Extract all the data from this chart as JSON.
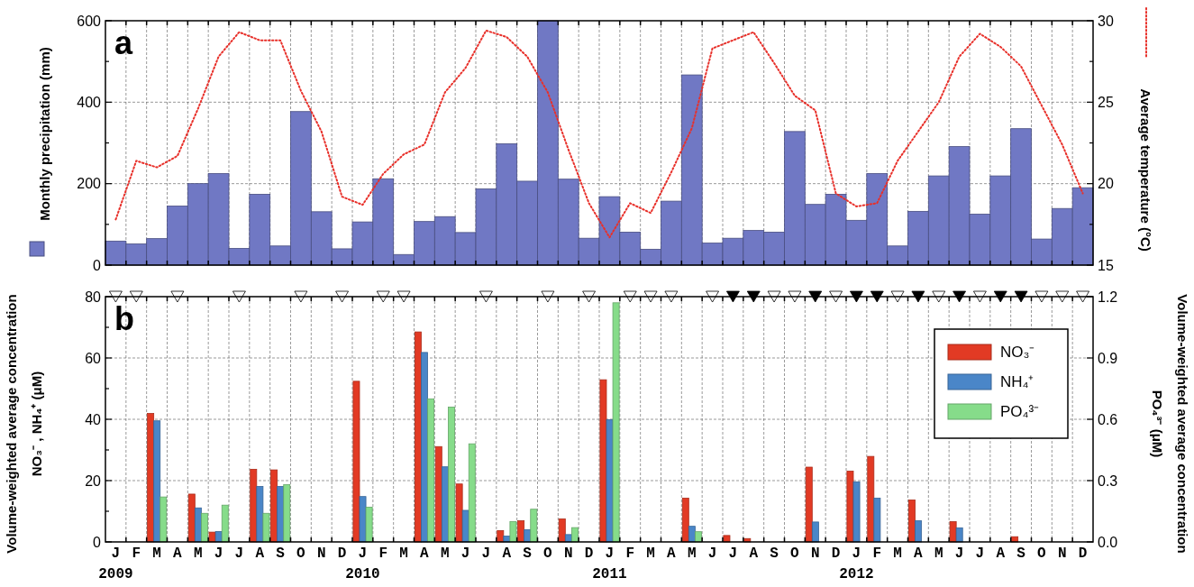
{
  "chart_data": [
    {
      "type": "bar",
      "title": "a",
      "categories": [
        null,
        null,
        null,
        null,
        null,
        null,
        null,
        null,
        null,
        null,
        null,
        null,
        null,
        null,
        null,
        null,
        null,
        null,
        null,
        null,
        null,
        null,
        null,
        null,
        null,
        null,
        null,
        null,
        null,
        null,
        null,
        null,
        null,
        null,
        null,
        null,
        null,
        null,
        null,
        null,
        null,
        null,
        null,
        null,
        null,
        null,
        null,
        null
      ],
      "ylabel": "Monthly precipitation (mm)",
      "y2label": "Average temperature (°C)",
      "ylim": [
        0,
        600
      ],
      "yticks": [
        0,
        {
          "value": 100,
          "label": null
        },
        200,
        {
          "value": 300,
          "label": null
        },
        400,
        {
          "value": 500,
          "label": null
        },
        600
      ],
      "y2lim": [
        15,
        30
      ],
      "y2ticks": [
        15,
        {
          "value": 17.5,
          "label": null
        },
        20,
        {
          "value": 22.5,
          "label": null
        },
        25,
        {
          "value": 27.5,
          "label": null
        },
        30
      ],
      "grid": true,
      "tick_labels": "y",
      "line_style": "dotted",
      "series": [
        {
          "type": "bar",
          "color": "#7078c4",
          "values": [
            59,
            52,
            65,
            145,
            200,
            225,
            41,
            174,
            47,
            377,
            131,
            40,
            106,
            212,
            26,
            107,
            119,
            80,
            187,
            298,
            206,
            600,
            211,
            66,
            168,
            81,
            39,
            157,
            467,
            54,
            66,
            85,
            81,
            328,
            149,
            174,
            110,
            225,
            47,
            132,
            219,
            291,
            125,
            219,
            335,
            64,
            139,
            190
          ]
        },
        {
          "type": "line",
          "axis": "y2",
          "color": "#e8302a",
          "values": [
            17.8,
            21.4,
            21.0,
            21.7,
            24.6,
            27.8,
            29.3,
            28.8,
            28.8,
            25.7,
            23.2,
            19.2,
            18.7,
            20.6,
            21.8,
            22.4,
            25.6,
            27.1,
            29.4,
            29.0,
            27.8,
            25.6,
            22.1,
            18.8,
            16.7,
            18.8,
            18.2,
            20.7,
            23.4,
            28.3,
            28.8,
            29.3,
            27.4,
            25.4,
            24.5,
            19.4,
            18.6,
            18.8,
            21.4,
            23.2,
            25.0,
            27.8,
            29.2,
            28.4,
            27.2,
            24.8,
            22.4,
            19.4
          ]
        }
      ]
    },
    {
      "type": "bar",
      "title": "b",
      "categories": [
        "J\n2009",
        "F",
        "M",
        "A",
        "M",
        "J",
        "J",
        "A",
        "S",
        "O",
        "N",
        "D",
        "J\n2010",
        "F",
        "M",
        "A",
        "M",
        "J",
        "J",
        "A",
        "S",
        "O",
        "N",
        "D",
        "J\n2011",
        "F",
        "M",
        "A",
        "M",
        "J",
        "J",
        "A",
        "S",
        "O",
        "N",
        "D",
        "J\n2012",
        "F",
        "M",
        "A",
        "M",
        "J",
        "J",
        "A",
        "S",
        "O",
        "N",
        "D"
      ],
      "ylabel": "Volume-weighted average concentration\nNO₃⁻ , NH₄⁺  (μM)",
      "y2label": "Volume-weighted average concentration\nPO₄³⁻  (μM)",
      "ylim": [
        0,
        80
      ],
      "yticks": [
        0,
        {
          "value": 10,
          "label": null
        },
        20,
        {
          "value": 30,
          "label": null
        },
        40,
        {
          "value": 50,
          "label": null
        },
        60,
        {
          "value": 70,
          "label": null
        },
        80
      ],
      "y2lim": [
        0,
        1.2
      ],
      "y2ticks": [
        {
          "value": 0,
          "label": "0.0"
        },
        0.3,
        0.6,
        0.9,
        1.2
      ],
      "grid": true,
      "legend": "top right",
      "marker": "triangle",
      "series": [
        {
          "type": "bar",
          "name": "NO₃⁻",
          "color": "#e23a24",
          "values": [
            null,
            null,
            41.9,
            null,
            15.6,
            3.2,
            null,
            23.7,
            23.5,
            null,
            null,
            null,
            52.4,
            null,
            null,
            68.5,
            31.1,
            18.9,
            null,
            3.7,
            6.9,
            null,
            7.5,
            null,
            52.9,
            null,
            null,
            null,
            14.3,
            null,
            2.1,
            1.1,
            null,
            null,
            24.4,
            null,
            23.1,
            27.9,
            null,
            13.7,
            null,
            6.6,
            null,
            null,
            1.7,
            null,
            null,
            null
          ]
        },
        {
          "type": "bar",
          "name": "NH₄⁺",
          "color": "#4a86c8",
          "values": [
            null,
            null,
            39.5,
            null,
            11.1,
            3.4,
            null,
            18.1,
            18.1,
            null,
            null,
            null,
            14.8,
            null,
            null,
            61.8,
            24.5,
            10.3,
            null,
            1.9,
            4.0,
            null,
            2.4,
            null,
            39.9,
            null,
            null,
            null,
            5.1,
            null,
            0,
            0,
            null,
            null,
            6.5,
            null,
            19.6,
            14.3,
            null,
            6.9,
            null,
            4.6,
            null,
            null,
            0,
            null,
            null,
            null
          ]
        },
        {
          "type": "bar",
          "name": "PO₄³⁻",
          "axis": "y2",
          "color": "#86dc8a",
          "values": [
            null,
            null,
            0.22,
            null,
            0.14,
            0.18,
            null,
            0.14,
            0.28,
            null,
            null,
            null,
            0.17,
            null,
            null,
            0.7,
            0.66,
            0.48,
            null,
            0.1,
            0.16,
            null,
            0.07,
            null,
            1.17,
            null,
            null,
            null,
            0.05,
            null,
            null,
            null,
            null,
            null,
            null,
            null,
            null,
            null,
            null,
            null,
            null,
            null,
            null,
            null,
            null,
            null,
            null,
            null
          ]
        },
        {
          "type": "scatter",
          "color": "#ffffff",
          "values": [
            80,
            80,
            null,
            80,
            null,
            null,
            80,
            null,
            null,
            80,
            null,
            80,
            null,
            80,
            80,
            null,
            null,
            null,
            80,
            null,
            null,
            80,
            null,
            80,
            null,
            80,
            80,
            80,
            null,
            80,
            null,
            null,
            80,
            80,
            null,
            80,
            null,
            null,
            80,
            null,
            80,
            null,
            80,
            null,
            null,
            80,
            80,
            80
          ]
        },
        {
          "type": "scatter",
          "color": "#000000",
          "values": [
            null,
            null,
            null,
            null,
            null,
            null,
            null,
            null,
            null,
            null,
            null,
            null,
            null,
            null,
            null,
            null,
            null,
            null,
            null,
            null,
            null,
            null,
            null,
            null,
            null,
            null,
            null,
            null,
            null,
            null,
            80,
            80,
            null,
            null,
            80,
            null,
            80,
            80,
            null,
            80,
            null,
            80,
            null,
            80,
            80,
            null,
            null,
            null
          ]
        }
      ]
    }
  ]
}
